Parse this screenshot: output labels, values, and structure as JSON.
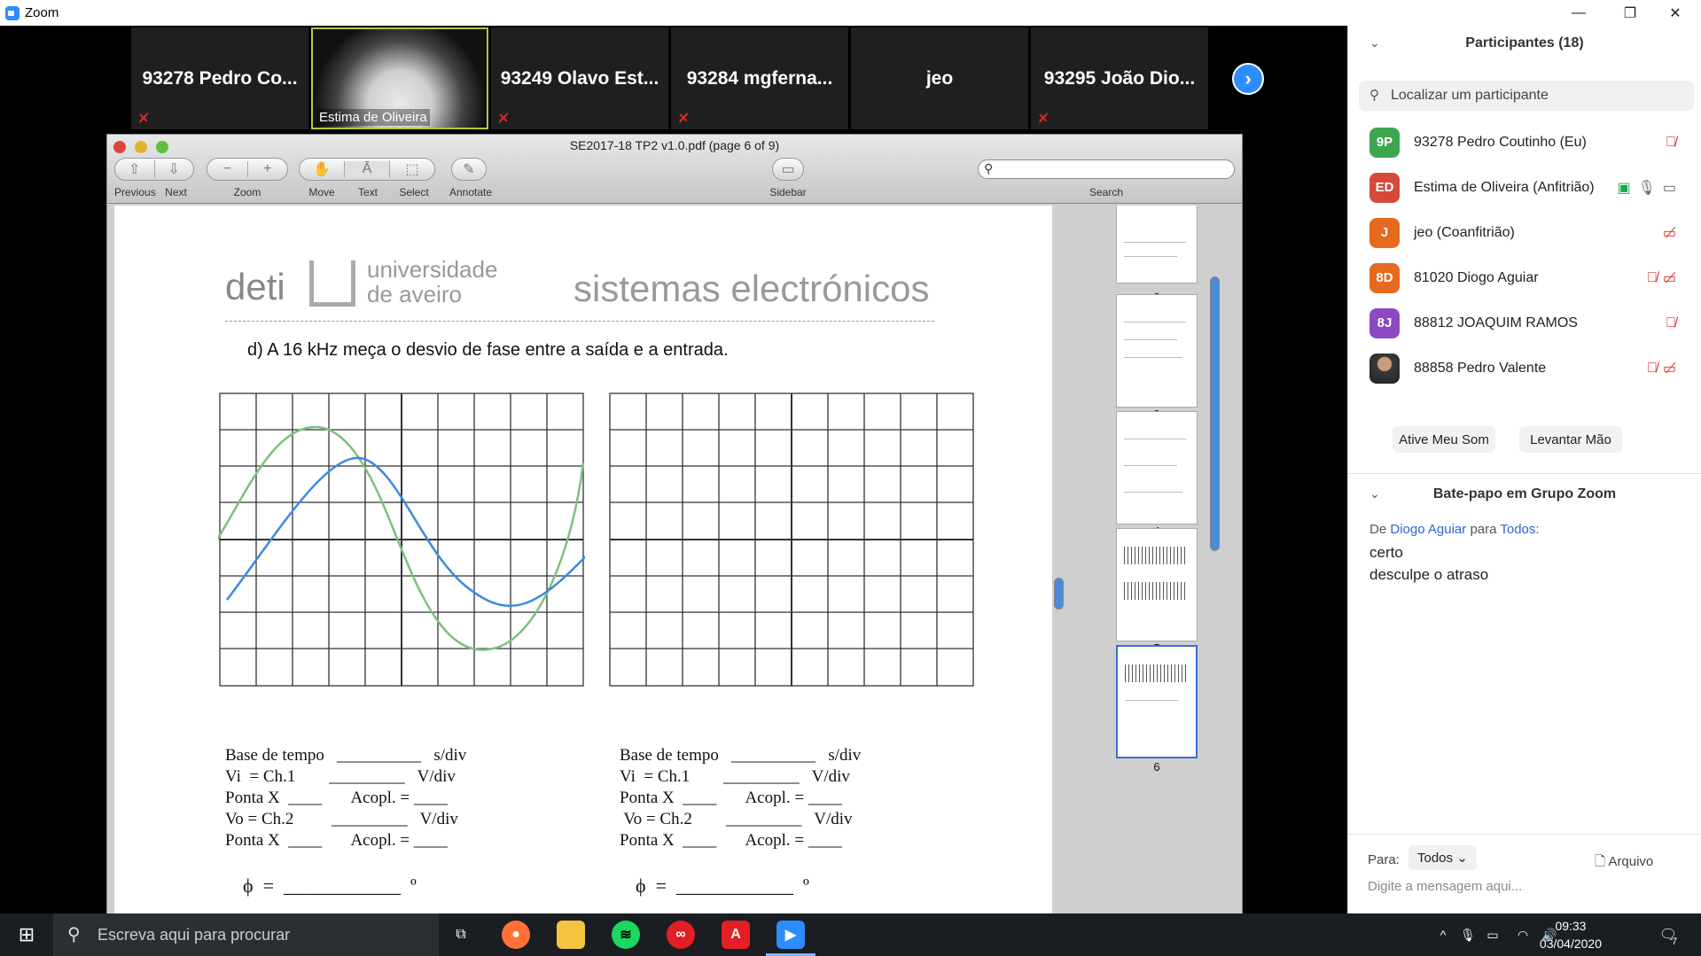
{
  "window": {
    "title": "Zoom",
    "minimize": "—",
    "restore": "❐",
    "close": "✕"
  },
  "video": {
    "tiles": [
      {
        "name": "93278 Pedro Co...",
        "muted": true
      },
      {
        "name": "Estima de Oliveira",
        "video": true
      },
      {
        "name": "93249 Olavo Est...",
        "muted": true
      },
      {
        "name": "93284 mgferna...",
        "muted": true
      },
      {
        "name": "jeo",
        "muted": false
      },
      {
        "name": "93295 João Dio...",
        "muted": true
      }
    ],
    "next_icon": "chevron-right-icon"
  },
  "pdf": {
    "title": "SE2017-18 TP2 v1.0.pdf (page 6 of 9)",
    "toolbar": {
      "previous": "Previous",
      "next": "Next",
      "zoom": "Zoom",
      "move": "Move",
      "text": "Text",
      "select": "Select",
      "annotate": "Annotate",
      "sidebar": "Sidebar",
      "search": "Search"
    },
    "page": {
      "deti": "deti",
      "uni_line1": "universidade",
      "uni_line2": "de aveiro",
      "course": "sistemas electrónicos",
      "question": "d) A 16 kHz meça o desvio de fase entre a saída e a entrada.",
      "form_left": [
        "Base de tempo   __________   s/div",
        "Vi  = Ch.1        _________   V/div",
        "Ponta X  ____       Acopl. = ____",
        "Vo = Ch.2         _________   V/div",
        "Ponta X  ____       Acopl. = ____"
      ],
      "form_right": [
        "Base de tempo   __________   s/div",
        "Vi  = Ch.1        _________   V/div",
        "Ponta X  ____       Acopl. = ____",
        " Vo = Ch.2        _________   V/div",
        "Ponta X  ____       Acopl. = ____"
      ],
      "phi_left": "ϕ  =  ____________  º",
      "phi_right": "ϕ  =  ____________  º"
    },
    "thumbnails": [
      "2",
      "3",
      "4",
      "5",
      "6"
    ],
    "active_page": "6"
  },
  "participants": {
    "header": "Participantes (18)",
    "search_placeholder": "Localizar um participante",
    "list": [
      {
        "initials": "9P",
        "color": "#3fa650",
        "name": "93278 Pedro Coutinho (Eu)",
        "icons": "mic-muted-icon"
      },
      {
        "initials": "ED",
        "color": "#d64a3a",
        "name": "Estima de Oliveira (Anfitrião)",
        "icons": "share-mic-video-icon"
      },
      {
        "initials": "J",
        "color": "#e56a1d",
        "name": "jeo (Coanfitrião)",
        "icons": "video-off-icon"
      },
      {
        "initials": "8D",
        "color": "#e5691f",
        "name": "81020 Diogo Aguiar",
        "icons": "mic-muted-video-off-icon"
      },
      {
        "initials": "8J",
        "color": "#8d49c1",
        "name": "88812 JOAQUIM RAMOS",
        "icons": "mic-muted-icon"
      },
      {
        "initials": "",
        "color": "#555555",
        "name": "88858 Pedro Valente",
        "icons": "mic-muted-video-off-icon"
      }
    ],
    "unmute_button": "Ative Meu Som",
    "raise_hand_button": "Levantar Mão"
  },
  "chat": {
    "header": "Bate-papo em Grupo Zoom",
    "from_prefix": "De",
    "from": "Diogo Aguiar",
    "to_prefix": "para",
    "to": "Todos:",
    "messages": [
      "certo",
      "desculpe o atraso"
    ],
    "to_label": "Para:",
    "to_select": "Todos",
    "file_label": "Arquivo",
    "input_placeholder": "Digite a mensagem aqui..."
  },
  "taskbar": {
    "search_placeholder": "Escreva aqui para procurar",
    "time": "09:33",
    "date": "03/04/2020",
    "notifications": "7"
  }
}
